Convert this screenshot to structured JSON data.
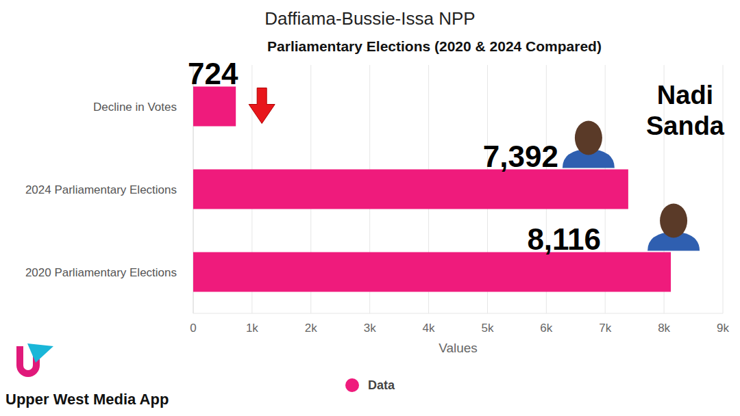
{
  "chart_data": {
    "type": "bar",
    "orientation": "horizontal",
    "title": "Daffiama-Bussie-Issa NPP",
    "subtitle": "Parliamentary Elections (2020 & 2024 Compared)",
    "categories": [
      "Decline in Votes",
      "2024 Parliamentary Elections",
      "2020 Parliamentary Elections"
    ],
    "series": [
      {
        "name": "Data",
        "color": "#ef1b7c",
        "values": [
          724,
          7392,
          8116
        ],
        "value_labels": [
          "724",
          "7,392",
          "8,116"
        ]
      }
    ],
    "xlabel": "Values",
    "xlim": [
      0,
      9000
    ],
    "xticks": [
      0,
      {
        "value": 1000,
        "label": "1k"
      },
      {
        "value": 2000,
        "label": "2k"
      },
      {
        "value": 3000,
        "label": "3k"
      },
      {
        "value": 4000,
        "label": "4k"
      },
      {
        "value": 5000,
        "label": "5k"
      },
      {
        "value": 6000,
        "label": "6k"
      },
      {
        "value": 7000,
        "label": "7k"
      },
      {
        "value": 8000,
        "label": "8k"
      },
      {
        "value": 9000,
        "label": "9k"
      }
    ],
    "grid": true,
    "legend": "bottom",
    "data_labels": true,
    "annotations": [
      "Nadi Sanda",
      "Upper West Media App"
    ]
  }
}
